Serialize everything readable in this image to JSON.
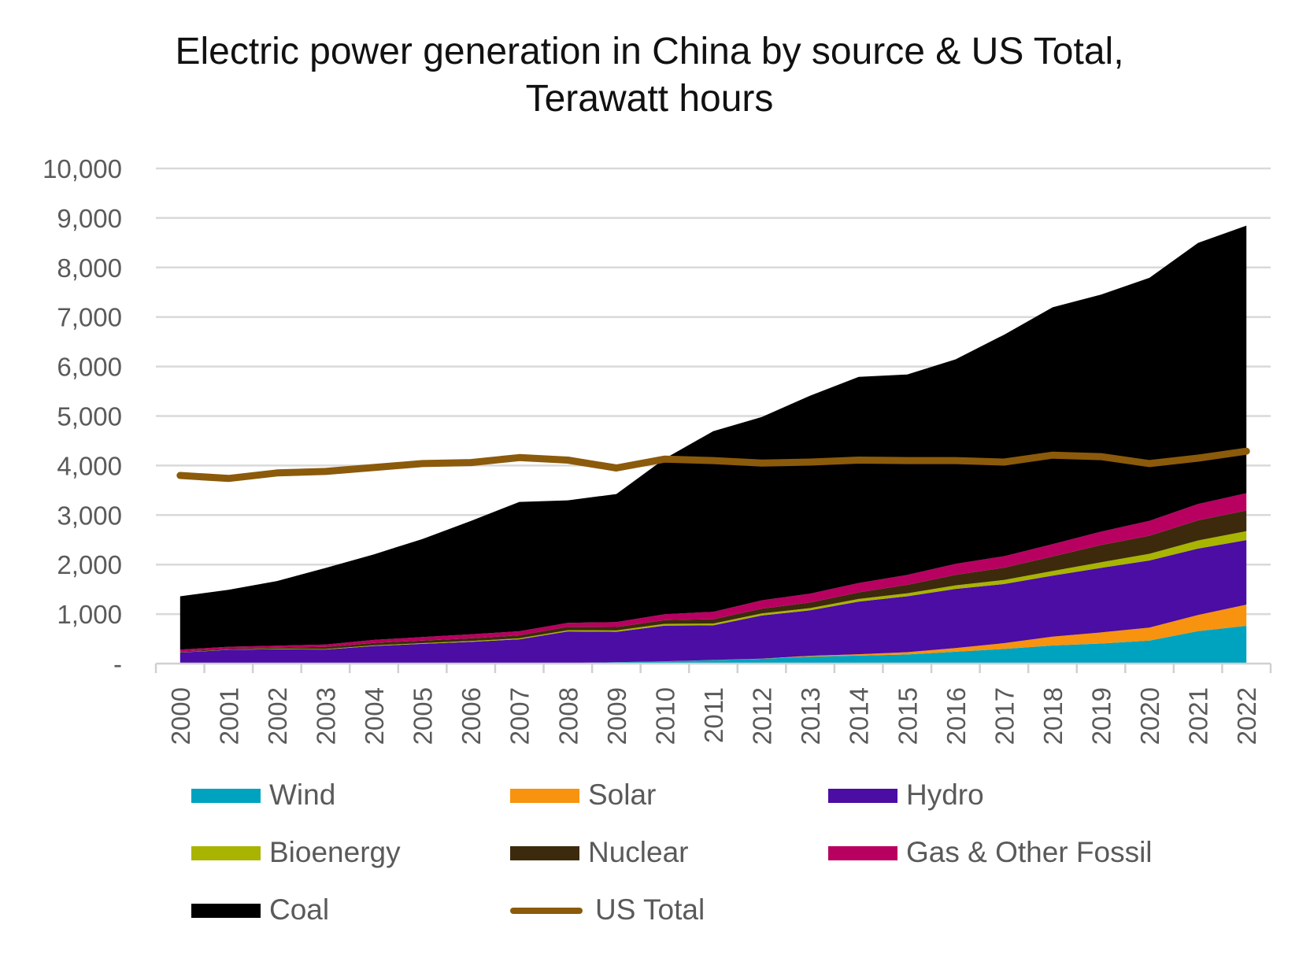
{
  "chart_data": {
    "type": "area",
    "title_lines": [
      "Electric power generation in China by source & US Total,",
      "Terawatt hours"
    ],
    "ylim": [
      0,
      10000
    ],
    "yticks": [
      {
        "value": 0,
        "label": "-"
      },
      {
        "value": 1000,
        "label": "1,000"
      },
      {
        "value": 2000,
        "label": "2,000"
      },
      {
        "value": 3000,
        "label": "3,000"
      },
      {
        "value": 4000,
        "label": "4,000"
      },
      {
        "value": 5000,
        "label": "5,000"
      },
      {
        "value": 6000,
        "label": "6,000"
      },
      {
        "value": 7000,
        "label": "7,000"
      },
      {
        "value": 8000,
        "label": "8,000"
      },
      {
        "value": 9000,
        "label": "9,000"
      },
      {
        "value": 10000,
        "label": "10,000"
      }
    ],
    "grid": true,
    "legend_position": "bottom",
    "categories": [
      "2000",
      "2001",
      "2002",
      "2003",
      "2004",
      "2005",
      "2006",
      "2007",
      "2008",
      "2009",
      "2010",
      "2011",
      "2012",
      "2013",
      "2014",
      "2015",
      "2016",
      "2017",
      "2018",
      "2019",
      "2020",
      "2021",
      "2022"
    ],
    "series": [
      {
        "name": "Wind",
        "kind": "stacked-area",
        "color": "#00A3BF",
        "values": [
          1,
          1,
          2,
          2,
          2,
          2,
          4,
          6,
          13,
          27,
          45,
          70,
          96,
          142,
          160,
          185,
          240,
          295,
          366,
          405,
          466,
          656,
          763
        ]
      },
      {
        "name": "Solar",
        "kind": "stacked-area",
        "color": "#F7930F",
        "values": [
          0,
          0,
          0,
          0,
          0,
          0,
          0,
          0,
          0,
          0,
          1,
          3,
          4,
          15,
          29,
          45,
          75,
          118,
          177,
          225,
          261,
          327,
          428
        ]
      },
      {
        "name": "Hydro",
        "kind": "stacked-area",
        "color": "#4B0DA3",
        "values": [
          222,
          277,
          288,
          283,
          354,
          397,
          435,
          485,
          637,
          616,
          722,
          699,
          872,
          920,
          1064,
          1130,
          1193,
          1195,
          1233,
          1304,
          1355,
          1339,
          1303
        ]
      },
      {
        "name": "Bioenergy",
        "kind": "stacked-area",
        "color": "#A8B400",
        "values": [
          3,
          5,
          7,
          9,
          12,
          14,
          17,
          20,
          24,
          27,
          35,
          38,
          40,
          44,
          52,
          59,
          73,
          82,
          93,
          112,
          136,
          164,
          180
        ]
      },
      {
        "name": "Nuclear",
        "kind": "stacked-area",
        "color": "#3D2A0C",
        "values": [
          17,
          18,
          25,
          43,
          50,
          53,
          55,
          62,
          68,
          70,
          74,
          86,
          97,
          112,
          133,
          171,
          213,
          248,
          295,
          349,
          366,
          407,
          418
        ]
      },
      {
        "name": "Gas & Other Fossil",
        "kind": "stacked-area",
        "color": "#B80060",
        "values": [
          40,
          40,
          40,
          50,
          60,
          70,
          80,
          80,
          80,
          100,
          120,
          150,
          170,
          180,
          190,
          200,
          220,
          230,
          250,
          270,
          300,
          330,
          350
        ]
      },
      {
        "name": "Coal",
        "kind": "stacked-area",
        "color": "#000000",
        "values": [
          1077,
          1150,
          1305,
          1545,
          1729,
          1980,
          2291,
          2612,
          2475,
          2584,
          3143,
          3649,
          3702,
          3999,
          4163,
          4049,
          4130,
          4474,
          4781,
          4788,
          4907,
          5273,
          5403
        ]
      },
      {
        "name": "US Total",
        "kind": "line",
        "color": "#8B5A0B",
        "values": [
          3800,
          3740,
          3850,
          3880,
          3960,
          4040,
          4060,
          4160,
          4110,
          3950,
          4130,
          4100,
          4050,
          4070,
          4110,
          4100,
          4100,
          4070,
          4210,
          4180,
          4040,
          4150,
          4290
        ]
      }
    ]
  }
}
